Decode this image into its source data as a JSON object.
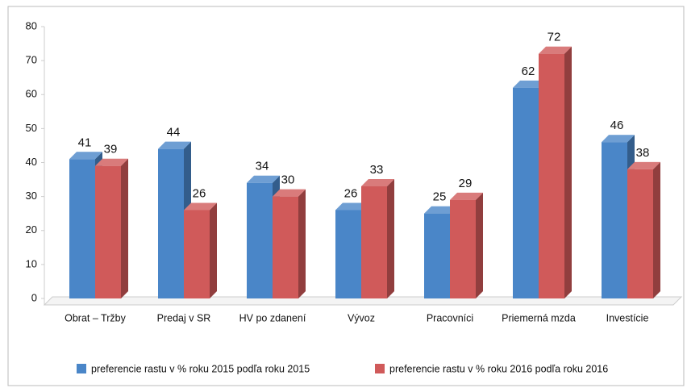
{
  "chart_data": {
    "type": "bar3d",
    "categories": [
      "Obrat – Tržby",
      "Predaj v SR",
      "HV po zdanení",
      "Vývoz",
      "Pracovníci",
      "Priemerná mzda",
      "Investície"
    ],
    "series": [
      {
        "name": "preferencie rastu v % roku 2015 podľa roku 2015",
        "color": "#4a86c8",
        "values": [
          41,
          44,
          34,
          26,
          25,
          62,
          46
        ]
      },
      {
        "name": "preferencie rastu v % roku 2016 podľa roku 2016",
        "color": "#d05a5a",
        "values": [
          39,
          26,
          30,
          33,
          29,
          72,
          38
        ]
      }
    ],
    "ylim": [
      0,
      80
    ],
    "yticks": [
      0,
      10,
      20,
      30,
      40,
      50,
      60,
      70,
      80
    ],
    "legend": "bottom"
  }
}
